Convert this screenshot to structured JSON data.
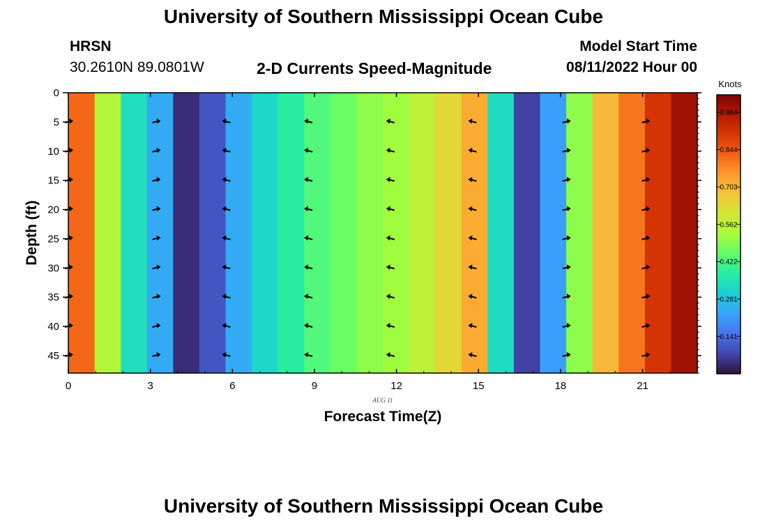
{
  "header": {
    "title": "University of Southern Mississippi Ocean Cube",
    "station": "HRSN",
    "coordinates": "30.2610N  89.0801W",
    "plot_title": "2-D Currents Speed-Magnitude",
    "model_start_label": "Model Start Time",
    "model_start_value": "08/11/2022 Hour 00"
  },
  "footer": {
    "title": "University of Southern Mississippi Ocean Cube"
  },
  "chart_data": {
    "type": "heatmap",
    "title": "2-D Currents Speed-Magnitude",
    "xlabel": "Forecast Time(Z)",
    "ylabel": "Depth (ft)",
    "date_label": "AUG 11",
    "xlim": [
      0,
      23
    ],
    "ylim": [
      0,
      48
    ],
    "y_inverted": true,
    "x_ticks": [
      "0",
      "3",
      "6",
      "9",
      "12",
      "15",
      "18",
      "21"
    ],
    "y_ticks": [
      "0",
      "5",
      "10",
      "15",
      "20",
      "25",
      "30",
      "35",
      "40",
      "45"
    ],
    "colorbar": {
      "label": "Knots",
      "ticks": [
        "0.984",
        "0.844",
        "0.703",
        "0.562",
        "0.422",
        "0.281",
        "0.141"
      ],
      "min": 0.0,
      "max": 1.05,
      "colormap": [
        "#30123b",
        "#4145ab",
        "#4675ed",
        "#39a2fc",
        "#1bcfd4",
        "#24eca6",
        "#61fc6c",
        "#a4fc3b",
        "#d1e834",
        "#f3c63a",
        "#fe9b2d",
        "#f36315",
        "#d93806",
        "#b11901",
        "#7a0403"
      ]
    },
    "columns": [
      {
        "hour": 0,
        "speed": 0.82
      },
      {
        "hour": 1,
        "speed": 0.55
      },
      {
        "hour": 2,
        "speed": 0.34
      },
      {
        "hour": 3,
        "speed": 0.24
      },
      {
        "hour": 4,
        "speed": 0.04
      },
      {
        "hour": 5,
        "speed": 0.1
      },
      {
        "hour": 6,
        "speed": 0.24
      },
      {
        "hour": 7,
        "speed": 0.32
      },
      {
        "hour": 8,
        "speed": 0.38
      },
      {
        "hour": 9,
        "speed": 0.43
      },
      {
        "hour": 10,
        "speed": 0.46
      },
      {
        "hour": 11,
        "speed": 0.5
      },
      {
        "hour": 12,
        "speed": 0.52
      },
      {
        "hour": 13,
        "speed": 0.57
      },
      {
        "hour": 14,
        "speed": 0.64
      },
      {
        "hour": 15,
        "speed": 0.72
      },
      {
        "hour": 16,
        "speed": 0.33
      },
      {
        "hour": 17,
        "speed": 0.07
      },
      {
        "hour": 18,
        "speed": 0.22
      },
      {
        "hour": 19,
        "speed": 0.5
      },
      {
        "hour": 20,
        "speed": 0.7
      },
      {
        "hour": 21,
        "speed": 0.8
      },
      {
        "hour": 22,
        "speed": 0.91
      },
      {
        "hour": 23,
        "speed": 1.0
      }
    ],
    "direction_arrows": {
      "hours": [
        0,
        3.2,
        5.8,
        8.8,
        11.8,
        14.8,
        18.2,
        21.1
      ],
      "depths": [
        5,
        10,
        15,
        20,
        25,
        30,
        35,
        40,
        45
      ],
      "direction": [
        "east",
        "east",
        "west",
        "west",
        "west",
        "west",
        "east",
        "east"
      ]
    }
  }
}
